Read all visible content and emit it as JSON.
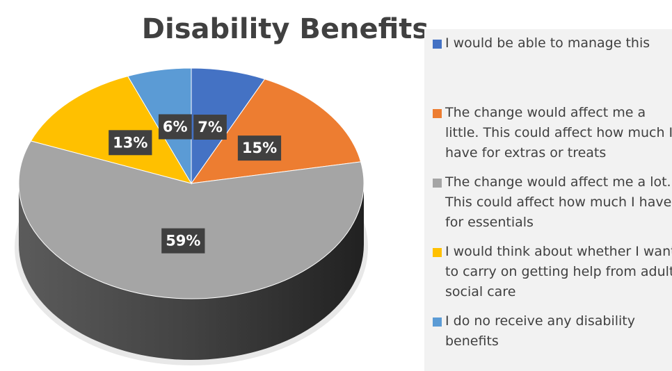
{
  "chart_data": {
    "type": "pie",
    "title": "Disability Benefits",
    "categories": [
      "I would be able to manage this",
      "The change would affect me a little. This could affect how much I have for extras or treats",
      "The change would affect me a lot. This could affect how much I have for essentials",
      "I would think about whether I want to carry on getting help from adult social care",
      "I do no receive any disability benefits"
    ],
    "values": [
      7,
      15,
      59,
      13,
      6
    ],
    "value_labels": [
      "7%",
      "15%",
      "59%",
      "13%",
      "6%"
    ],
    "colors": [
      "#4472c4",
      "#ed7d31",
      "#a5a5a5",
      "#ffc000",
      "#5b9bd5"
    ],
    "legend": "right"
  }
}
